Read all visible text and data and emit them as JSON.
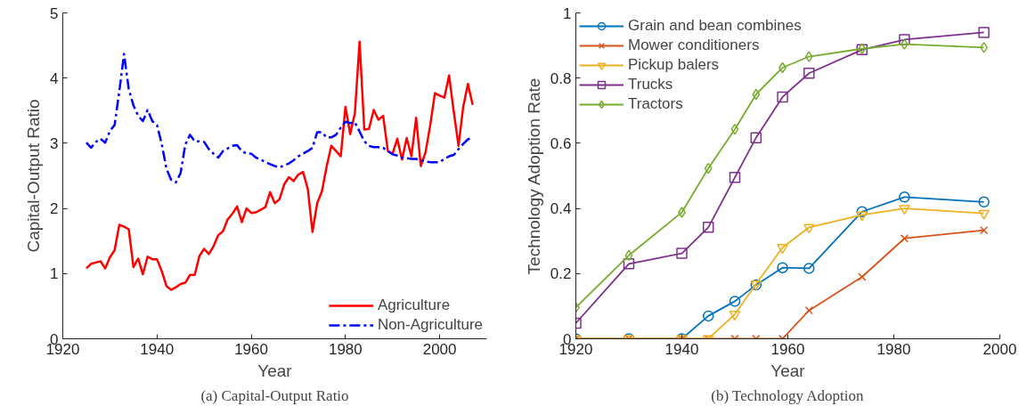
{
  "chart_data": [
    {
      "type": "line",
      "xlabel": "Year",
      "ylabel": "Capital-Output Ratio",
      "annotations": [
        "(a) Capital-Output Ratio"
      ],
      "legend": "bottom right",
      "marker": "none",
      "x": [
        1925,
        1926,
        1927,
        1928,
        1929,
        1930,
        1931,
        1932,
        1933,
        1934,
        1935,
        1936,
        1937,
        1938,
        1939,
        1940,
        1941,
        1942,
        1943,
        1944,
        1945,
        1946,
        1947,
        1948,
        1949,
        1950,
        1951,
        1952,
        1953,
        1954,
        1955,
        1956,
        1957,
        1958,
        1959,
        1960,
        1961,
        1962,
        1963,
        1964,
        1965,
        1966,
        1967,
        1968,
        1969,
        1970,
        1971,
        1972,
        1973,
        1974,
        1975,
        1976,
        1977,
        1978,
        1979,
        1980,
        1981,
        1982,
        1983,
        1984,
        1985,
        1986,
        1987,
        1988,
        1989,
        1990,
        1991,
        1992,
        1993,
        1994,
        1995,
        1996,
        1997,
        1998,
        1999,
        2000,
        2001,
        2002,
        2003,
        2004,
        2005,
        2006,
        2007
      ],
      "xlim": [
        1920,
        2010
      ],
      "xticks": [
        1920,
        1940,
        1960,
        1980,
        2000
      ],
      "ylim": [
        0,
        5
      ],
      "yticks": [
        0,
        1,
        2,
        3,
        4,
        5
      ],
      "series": [
        {
          "name": "Agriculture",
          "color": "#ff0000",
          "line_style": "solid",
          "values": [
            1.08,
            1.15,
            1.17,
            1.19,
            1.08,
            1.25,
            1.36,
            1.75,
            1.72,
            1.68,
            1.1,
            1.23,
            0.99,
            1.26,
            1.22,
            1.22,
            1.04,
            0.81,
            0.75,
            0.79,
            0.84,
            0.86,
            0.98,
            0.98,
            1.27,
            1.38,
            1.3,
            1.42,
            1.59,
            1.65,
            1.83,
            1.92,
            2.03,
            1.79,
            2.0,
            1.93,
            1.94,
            1.98,
            2.02,
            2.25,
            2.08,
            2.14,
            2.37,
            2.48,
            2.42,
            2.52,
            2.56,
            2.3,
            1.64,
            2.08,
            2.26,
            2.64,
            2.96,
            2.88,
            2.8,
            3.56,
            3.14,
            3.46,
            4.56,
            3.21,
            3.22,
            3.51,
            3.36,
            3.42,
            2.88,
            2.84,
            3.07,
            2.75,
            3.08,
            2.8,
            3.39,
            2.65,
            2.86,
            3.28,
            3.77,
            3.73,
            3.7,
            4.04,
            3.48,
            2.96,
            3.56,
            3.91,
            3.59
          ]
        },
        {
          "name": "Non-Agriculture",
          "color": "#0000ff",
          "line_style": "dashdot",
          "values": [
            3.01,
            2.93,
            3.02,
            3.07,
            3.01,
            3.19,
            3.28,
            3.8,
            4.37,
            3.83,
            3.58,
            3.42,
            3.34,
            3.51,
            3.34,
            3.28,
            2.99,
            2.61,
            2.44,
            2.4,
            2.54,
            2.98,
            3.13,
            3.03,
            3.03,
            3.02,
            2.91,
            2.84,
            2.78,
            2.88,
            2.92,
            2.96,
            2.97,
            2.88,
            2.84,
            2.84,
            2.78,
            2.75,
            2.71,
            2.68,
            2.65,
            2.63,
            2.66,
            2.69,
            2.74,
            2.8,
            2.84,
            2.88,
            2.93,
            3.17,
            3.17,
            3.09,
            3.09,
            3.13,
            3.24,
            3.33,
            3.31,
            3.32,
            3.18,
            3.03,
            2.96,
            2.94,
            2.94,
            2.93,
            2.88,
            2.83,
            2.81,
            2.78,
            2.77,
            2.76,
            2.76,
            2.74,
            2.72,
            2.71,
            2.71,
            2.71,
            2.76,
            2.8,
            2.82,
            2.91,
            2.99,
            3.06,
            3.09
          ]
        }
      ]
    },
    {
      "type": "line",
      "xlabel": "Year",
      "ylabel": "Technology Adoption Rate",
      "annotations": [
        "(b) Technology Adoption"
      ],
      "legend": "top left",
      "x": [
        1920,
        1930,
        1940,
        1945,
        1950,
        1954,
        1959,
        1964,
        1974,
        1982,
        1997
      ],
      "xlim": [
        1920,
        2000
      ],
      "xticks": [
        1920,
        1940,
        1960,
        1980,
        2000
      ],
      "ylim": [
        0,
        1
      ],
      "yticks": [
        0,
        0.2,
        0.4,
        0.6,
        0.8,
        1
      ],
      "series": [
        {
          "name": "Grain and bean combines",
          "color": "#0072bd",
          "marker": "circle",
          "values": [
            0,
            0,
            0,
            0.07,
            0.115,
            0.165,
            0.218,
            0.216,
            0.39,
            0.435,
            0.42
          ]
        },
        {
          "name": "Mower conditioners",
          "color": "#d95319",
          "marker": "cross",
          "values": [
            0,
            0,
            0,
            0,
            0,
            0,
            0,
            0.087,
            0.19,
            0.308,
            0.333
          ]
        },
        {
          "name": "Pickup balers",
          "color": "#edb120",
          "marker": "triangle",
          "values": [
            0,
            0,
            0,
            0,
            0.075,
            0.168,
            0.28,
            0.342,
            0.38,
            0.4,
            0.385
          ]
        },
        {
          "name": "Trucks",
          "color": "#7e2f8e",
          "marker": "square",
          "values": [
            0.048,
            0.23,
            0.262,
            0.342,
            0.495,
            0.617,
            0.742,
            0.815,
            0.887,
            0.918,
            0.94
          ]
        },
        {
          "name": "Tractors",
          "color": "#77ac30",
          "marker": "diamond",
          "values": [
            0.096,
            0.256,
            0.388,
            0.523,
            0.643,
            0.75,
            0.832,
            0.866,
            0.89,
            0.904,
            0.894
          ]
        }
      ]
    }
  ]
}
